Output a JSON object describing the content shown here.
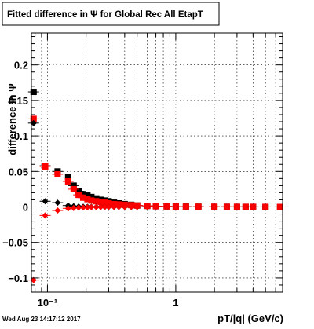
{
  "chart_data": {
    "type": "scatter",
    "title": "Fitted difference in  Ψ  for Global Rec All EtapT",
    "xlabel": "pT/|q| (GeV/c)",
    "ylabel": "difference in  Ψ",
    "xscale": "log",
    "xlim": [
      0.075,
      6.8
    ],
    "ylim": [
      -0.12,
      0.245
    ],
    "grid": true,
    "x_ticks": [
      {
        "value": 0.1,
        "label": "10⁻¹"
      },
      {
        "value": 1,
        "label": "1"
      }
    ],
    "y_ticks": [
      {
        "value": -0.1,
        "label": "−0.1"
      },
      {
        "value": -0.05,
        "label": "−0.05"
      },
      {
        "value": 0,
        "label": "0"
      },
      {
        "value": 0.05,
        "label": "0.05"
      },
      {
        "value": 0.1,
        "label": "0.1"
      },
      {
        "value": 0.15,
        "label": "0.15"
      },
      {
        "value": 0.2,
        "label": "0.2"
      }
    ],
    "series": [
      {
        "marker": "square",
        "color": "#000000",
        "x": [
          0.078,
          0.096,
          0.12,
          0.145,
          0.16,
          0.175,
          0.19,
          0.205,
          0.22,
          0.24,
          0.26,
          0.28,
          0.3,
          0.33,
          0.36,
          0.4,
          0.45,
          0.5,
          0.6,
          0.7,
          0.85,
          1.0,
          1.2,
          1.5,
          2.0,
          2.5,
          3.0,
          3.5,
          4.0,
          5.0,
          6.5
        ],
        "y": [
          0.162,
          0.058,
          0.05,
          0.042,
          0.03,
          0.022,
          0.018,
          0.016,
          0.014,
          0.012,
          0.01,
          0.009,
          0.008,
          0.006,
          0.005,
          0.004,
          0.003,
          0.002,
          0.0015,
          0.001,
          0.0008,
          0.0005,
          0.0004,
          0.0003,
          0.0002,
          0.0002,
          0.0001,
          0.0001,
          0.0001,
          0.0,
          0.0
        ]
      },
      {
        "marker": "square",
        "color": "#ff0000",
        "x": [
          0.078,
          0.096,
          0.12,
          0.145,
          0.16,
          0.175,
          0.19,
          0.205,
          0.22,
          0.24,
          0.26,
          0.28,
          0.3,
          0.33,
          0.36,
          0.4,
          0.45,
          0.5,
          0.6,
          0.7,
          0.85,
          1.0,
          1.2,
          1.5,
          2.0,
          2.5,
          3.0,
          3.5,
          4.0,
          5.0,
          6.5
        ],
        "y": [
          0.124,
          0.057,
          0.046,
          0.036,
          0.025,
          0.017,
          0.013,
          0.011,
          0.009,
          0.008,
          0.007,
          0.006,
          0.005,
          0.004,
          0.0035,
          0.003,
          0.0025,
          0.002,
          0.0015,
          0.001,
          0.0008,
          0.0005,
          0.0004,
          0.0003,
          0.0003,
          0.0002,
          0.0002,
          0.0001,
          0.0001,
          0.0001,
          0.0
        ]
      },
      {
        "marker": "diamond",
        "color": "#000000",
        "x": [
          0.078,
          0.096,
          0.12,
          0.145,
          0.16,
          0.175,
          0.19,
          0.205,
          0.22,
          0.24,
          0.26,
          0.28,
          0.3,
          0.33,
          0.36,
          0.4,
          0.45,
          0.5,
          0.6,
          0.7,
          0.85,
          1.0,
          1.2,
          1.5,
          2.0,
          2.5,
          3.0,
          3.5,
          4.0,
          5.0,
          6.5
        ],
        "y": [
          0.118,
          0.008,
          0.006,
          0.002,
          0.001,
          0.0005,
          0.0003,
          0.0002,
          0.0001,
          0.0,
          0.0,
          0.0,
          0.0,
          0.0,
          0.0,
          0.0,
          0.0,
          0.0,
          0.0,
          0.0,
          0.0,
          0.0,
          0.0,
          0.0,
          0.0,
          0.0,
          0.0,
          0.0,
          0.0,
          0.0,
          0.0
        ]
      },
      {
        "marker": "diamond",
        "color": "#ff0000",
        "x": [
          0.078,
          0.096,
          0.12,
          0.145,
          0.16,
          0.175,
          0.19,
          0.205,
          0.22,
          0.24,
          0.26,
          0.28,
          0.3,
          0.33,
          0.36,
          0.4,
          0.45,
          0.5,
          0.6,
          0.7,
          0.85,
          1.0,
          1.2,
          1.5,
          2.0,
          2.5,
          3.0,
          3.5,
          4.0,
          5.0,
          6.5
        ],
        "y": [
          -0.103,
          -0.012,
          -0.005,
          -0.002,
          -0.0015,
          -0.001,
          -0.0008,
          -0.0005,
          -0.0003,
          -0.0002,
          -0.0001,
          0.0,
          0.0,
          0.0,
          0.0,
          0.0,
          0.0,
          0.0,
          0.0,
          0.0,
          0.0,
          0.0,
          0.0,
          0.0,
          0.0,
          0.0,
          0.0,
          0.0,
          0.0,
          0.0,
          0.0
        ]
      }
    ]
  },
  "footer": {
    "timestamp": "Wed Aug 23 14:17:12 2017"
  }
}
